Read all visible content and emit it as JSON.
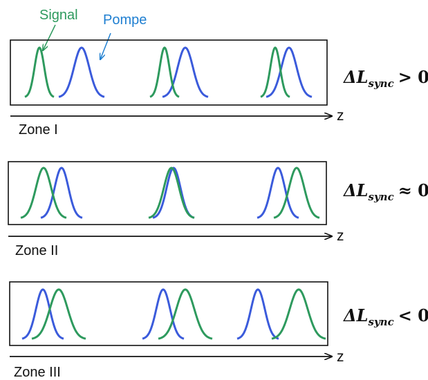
{
  "legend": {
    "signal_label": "Signal",
    "pompe_label": "Pompe",
    "signal_color": "#2e9a5e",
    "pompe_color": "#3b5bdb"
  },
  "axis_label": "z",
  "zones": [
    {
      "label": "Zone I",
      "condition": {
        "delta": "ΔL",
        "sub": "sync",
        "relation": "> 0"
      },
      "pairs": [
        "signal-before-pump",
        "signal-before-pump-closer",
        "signal-before-pump-overlapping"
      ]
    },
    {
      "label": "Zone II",
      "condition": {
        "delta": "ΔL",
        "sub": "sync",
        "relation": "≈ 0"
      },
      "pairs": [
        "signal-slightly-before-pump",
        "signal-on-pump",
        "pump-slightly-before-signal"
      ]
    },
    {
      "label": "Zone III",
      "condition": {
        "delta": "ΔL",
        "sub": "sync",
        "relation": "< 0"
      },
      "pairs": [
        "pump-before-signal-overlapping",
        "pump-before-signal",
        "pump-before-signal-separated"
      ]
    }
  ]
}
